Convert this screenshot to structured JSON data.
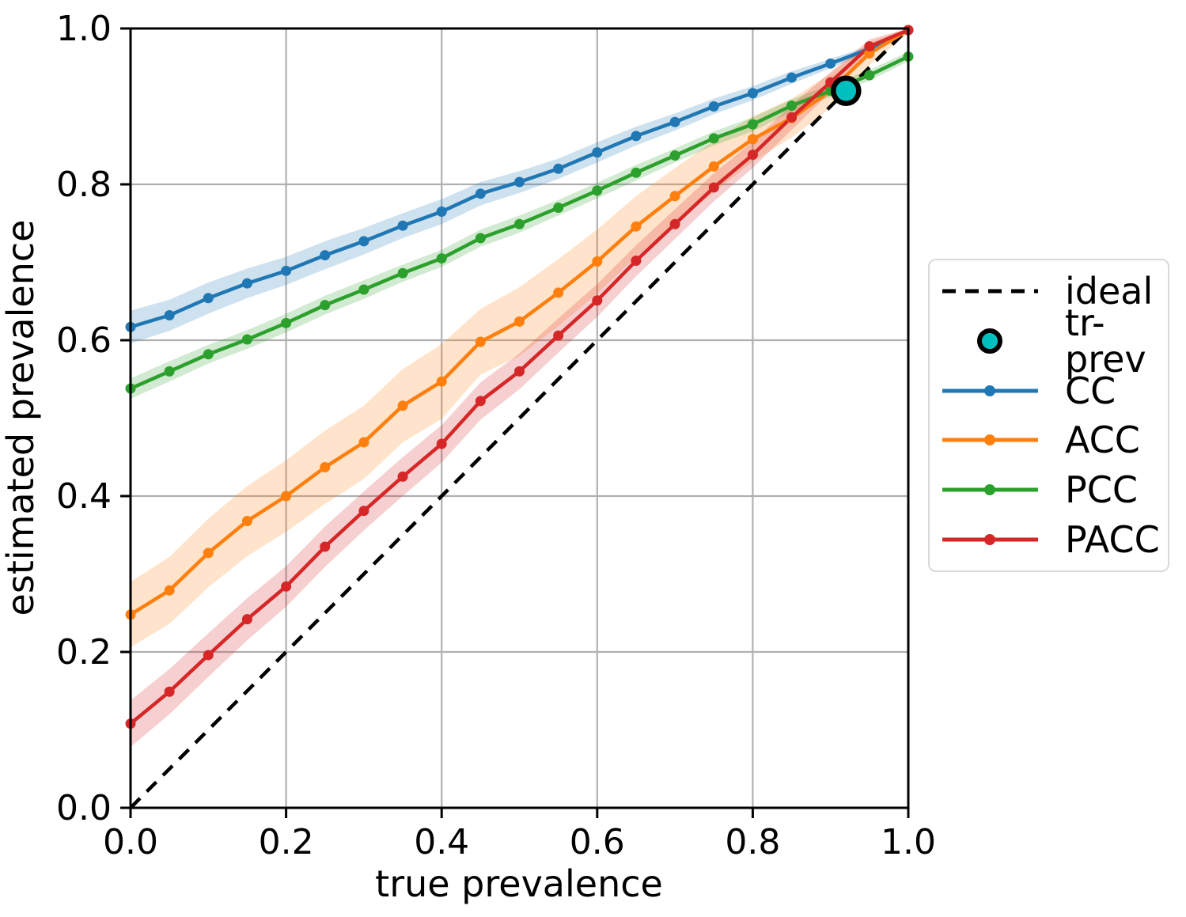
{
  "chart_data": {
    "type": "line",
    "title": "",
    "xlabel": "true prevalence",
    "ylabel": "estimated prevalence",
    "xlim": [
      0.0,
      1.0
    ],
    "ylim": [
      0.0,
      1.0
    ],
    "grid": true,
    "legend_position": "center right, outside axes",
    "xticks": {
      "values": [
        0.0,
        0.2,
        0.4,
        0.6,
        0.8,
        1.0
      ],
      "labels": [
        "0.0",
        "0.2",
        "0.4",
        "0.6",
        "0.8",
        "1.0"
      ]
    },
    "yticks": {
      "values": [
        0.0,
        0.2,
        0.4,
        0.6,
        0.8,
        1.0
      ],
      "labels": [
        "0.0",
        "0.2",
        "0.4",
        "0.6",
        "0.8",
        "1.0"
      ]
    },
    "x": [
      0.0,
      0.05,
      0.1,
      0.15,
      0.2,
      0.25,
      0.3,
      0.35,
      0.4,
      0.45,
      0.5,
      0.55,
      0.6,
      0.65,
      0.7,
      0.75,
      0.8,
      0.85,
      0.9,
      0.95,
      1.0
    ],
    "series": [
      {
        "name": "CC",
        "color": "#1f77b4",
        "values": [
          0.617,
          0.632,
          0.654,
          0.673,
          0.689,
          0.709,
          0.727,
          0.747,
          0.765,
          0.788,
          0.803,
          0.82,
          0.841,
          0.862,
          0.88,
          0.9,
          0.917,
          0.937,
          0.955,
          0.974,
          0.998
        ],
        "band": [
          0.021,
          0.02,
          0.02,
          0.019,
          0.018,
          0.018,
          0.017,
          0.016,
          0.016,
          0.015,
          0.014,
          0.013,
          0.013,
          0.012,
          0.011,
          0.01,
          0.009,
          0.008,
          0.006,
          0.004,
          0.002
        ]
      },
      {
        "name": "ACC",
        "color": "#ff7f0e",
        "values": [
          0.248,
          0.279,
          0.327,
          0.368,
          0.4,
          0.437,
          0.469,
          0.516,
          0.547,
          0.598,
          0.624,
          0.661,
          0.701,
          0.746,
          0.785,
          0.823,
          0.858,
          0.885,
          0.92,
          0.968,
          0.998
        ],
        "band": [
          0.042,
          0.043,
          0.044,
          0.045,
          0.046,
          0.047,
          0.047,
          0.047,
          0.048,
          0.042,
          0.044,
          0.043,
          0.041,
          0.039,
          0.036,
          0.033,
          0.029,
          0.025,
          0.022,
          0.015,
          0.004
        ]
      },
      {
        "name": "PCC",
        "color": "#2ca02c",
        "values": [
          0.538,
          0.56,
          0.582,
          0.601,
          0.622,
          0.645,
          0.665,
          0.686,
          0.705,
          0.731,
          0.749,
          0.77,
          0.792,
          0.815,
          0.837,
          0.859,
          0.877,
          0.901,
          0.92,
          0.94,
          0.964
        ],
        "band": [
          0.013,
          0.013,
          0.012,
          0.012,
          0.012,
          0.012,
          0.012,
          0.011,
          0.011,
          0.011,
          0.011,
          0.01,
          0.01,
          0.01,
          0.009,
          0.009,
          0.009,
          0.008,
          0.008,
          0.007,
          0.006
        ]
      },
      {
        "name": "PACC",
        "color": "#d62728",
        "values": [
          0.108,
          0.149,
          0.196,
          0.242,
          0.284,
          0.335,
          0.381,
          0.425,
          0.467,
          0.522,
          0.56,
          0.606,
          0.651,
          0.702,
          0.749,
          0.796,
          0.838,
          0.886,
          0.931,
          0.977,
          0.998
        ],
        "band": [
          0.03,
          0.029,
          0.028,
          0.027,
          0.026,
          0.026,
          0.025,
          0.025,
          0.024,
          0.024,
          0.023,
          0.022,
          0.021,
          0.02,
          0.019,
          0.018,
          0.017,
          0.016,
          0.013,
          0.009,
          0.003
        ]
      }
    ],
    "ideal": {
      "label": "ideal",
      "color": "#000000",
      "style": "dashed",
      "points": [
        [
          0,
          0
        ],
        [
          1,
          1
        ]
      ]
    },
    "tr_prev": {
      "label": "tr-prev",
      "x": 0.92,
      "y": 0.92,
      "fill": "#00bfbf",
      "edge": "#000000"
    },
    "legend_entries": [
      "ideal",
      "tr-prev",
      "CC",
      "ACC",
      "PCC",
      "PACC"
    ],
    "band_opacity": 0.22,
    "grid_color": "#b0b0b0"
  }
}
